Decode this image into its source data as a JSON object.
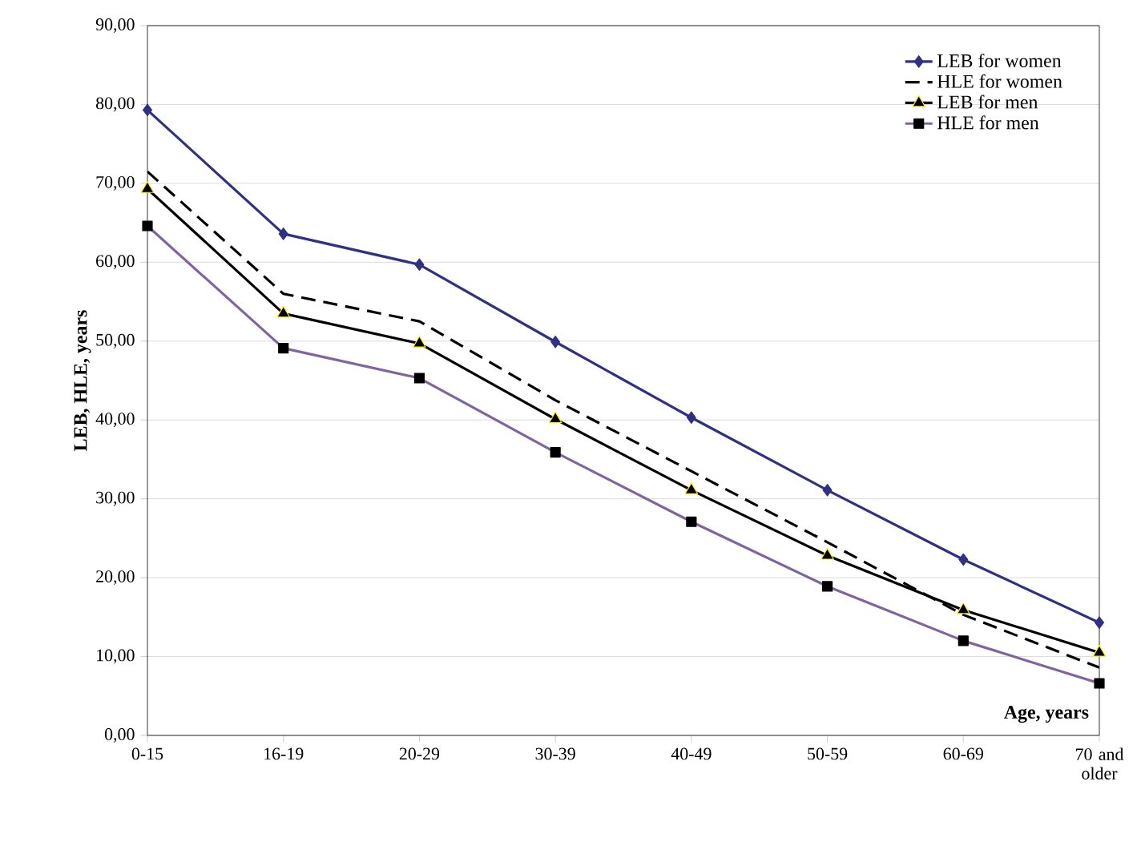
{
  "chart_data": {
    "type": "line",
    "ylabel": "LEB, HLE,  years",
    "xlabel": "Age, years",
    "categories": [
      "0-15",
      "16-19",
      "20-29",
      "30-39",
      "40-49",
      "50-59",
      "60-69",
      "70 and older"
    ],
    "ylim": [
      0,
      90
    ],
    "yticks": [
      {
        "value": 0,
        "label": "0,00"
      },
      {
        "value": 10,
        "label": "10,00"
      },
      {
        "value": 20,
        "label": "20,00"
      },
      {
        "value": 30,
        "label": "30,00"
      },
      {
        "value": 40,
        "label": "40,00"
      },
      {
        "value": 50,
        "label": "50,00"
      },
      {
        "value": 60,
        "label": "60,00"
      },
      {
        "value": 70,
        "label": "70,00"
      },
      {
        "value": 80,
        "label": "80,00"
      },
      {
        "value": 90,
        "label": "90,00"
      }
    ],
    "grid": "y",
    "legend": "top right",
    "series": [
      {
        "name": "LEB for women",
        "color": "#2e3184",
        "marker": "diamond",
        "line_style": "solid",
        "values": [
          79.3,
          63.6,
          59.7,
          49.9,
          40.3,
          31.1,
          22.3,
          14.3
        ]
      },
      {
        "name": "HLE for women",
        "color": "#000000",
        "marker": "none",
        "line_style": "dashed",
        "values": [
          71.5,
          56.0,
          52.5,
          42.5,
          33.5,
          24.5,
          15.3,
          8.6
        ]
      },
      {
        "name": "LEB for men",
        "color": "#000000",
        "marker": "triangle",
        "line_style": "solid",
        "values": [
          69.3,
          53.5,
          49.7,
          40.1,
          31.1,
          22.8,
          15.9,
          10.5
        ]
      },
      {
        "name": "HLE for men",
        "color": "#8064a2",
        "marker": "square",
        "line_style": "solid",
        "values": [
          64.6,
          49.1,
          45.3,
          35.9,
          27.1,
          18.9,
          12.0,
          6.6
        ]
      }
    ]
  }
}
